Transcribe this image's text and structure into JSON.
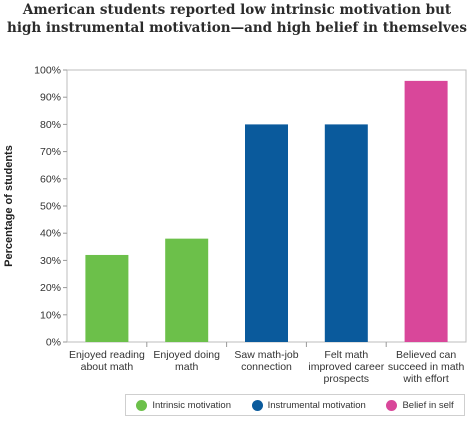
{
  "chart_data": {
    "type": "bar",
    "title": [
      "American students reported low intrinsic motivation but",
      "high instrumental motivation—and high belief in themselves"
    ],
    "ylabel": "Percentage of students",
    "xlabel": "",
    "ylim": [
      0,
      100
    ],
    "yticks": [
      0,
      10,
      20,
      30,
      40,
      50,
      60,
      70,
      80,
      90,
      100
    ],
    "ytick_suffix": "%",
    "grid": false,
    "categories": [
      [
        "Enjoyed reading",
        "about math"
      ],
      [
        "Enjoyed doing",
        "math"
      ],
      [
        "Saw math-job",
        "connection"
      ],
      [
        "Felt math",
        "improved career",
        "prospects"
      ],
      [
        "Believed can",
        "succeed in math",
        "with effort"
      ]
    ],
    "values": [
      32,
      38,
      80,
      80,
      96
    ],
    "bar_groups": [
      "intrinsic",
      "intrinsic",
      "instrumental",
      "instrumental",
      "belief"
    ],
    "legend": [
      {
        "key": "intrinsic",
        "label": "Intrinsic motivation",
        "color": "#6cc04a"
      },
      {
        "key": "instrumental",
        "label": "Instrumental motivation",
        "color": "#0a5a9c"
      },
      {
        "key": "belief",
        "label": "Belief in self",
        "color": "#d9479a"
      }
    ],
    "legend_placement": "bottom"
  }
}
